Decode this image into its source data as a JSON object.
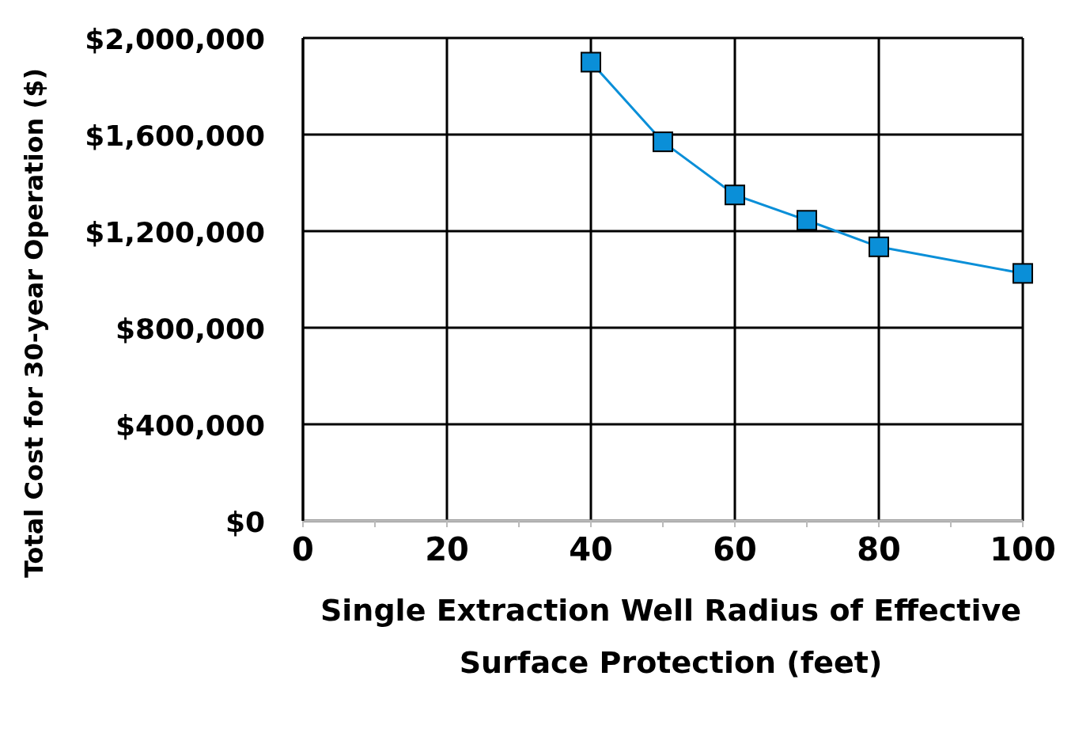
{
  "chart_data": {
    "type": "line",
    "xlabel": "Single Extraction Well Radius of Effective Surface Protection (feet)",
    "ylabel": "Total Cost for 30-year Operation ($)",
    "x": [
      40,
      50,
      60,
      70,
      80,
      100
    ],
    "series": [
      {
        "color": "#0a8fd8",
        "values": [
          1900000,
          1570000,
          1350000,
          1245000,
          1135000,
          1025000
        ]
      }
    ],
    "xlim": [
      0,
      100
    ],
    "xticks": [
      0,
      {
        "value": 10,
        "label": null
      },
      20,
      {
        "value": 30,
        "label": null
      },
      40,
      {
        "value": 50,
        "label": null
      },
      60,
      {
        "value": 70,
        "label": null
      },
      80,
      {
        "value": 90,
        "label": null
      },
      100
    ],
    "ylim": [
      0,
      2000000
    ],
    "yticks": [
      {
        "value": 0,
        "label": "$0"
      },
      {
        "value": 400000,
        "label": "$400,000"
      },
      {
        "value": 800000,
        "label": "$800,000"
      },
      {
        "value": 1200000,
        "label": "$1,200,000"
      },
      {
        "value": 1600000,
        "label": "$1,600,000"
      },
      {
        "value": 2000000,
        "label": "$2,000,000"
      }
    ],
    "grid": true,
    "legend": false,
    "marker": "square",
    "line_style": "solid"
  }
}
